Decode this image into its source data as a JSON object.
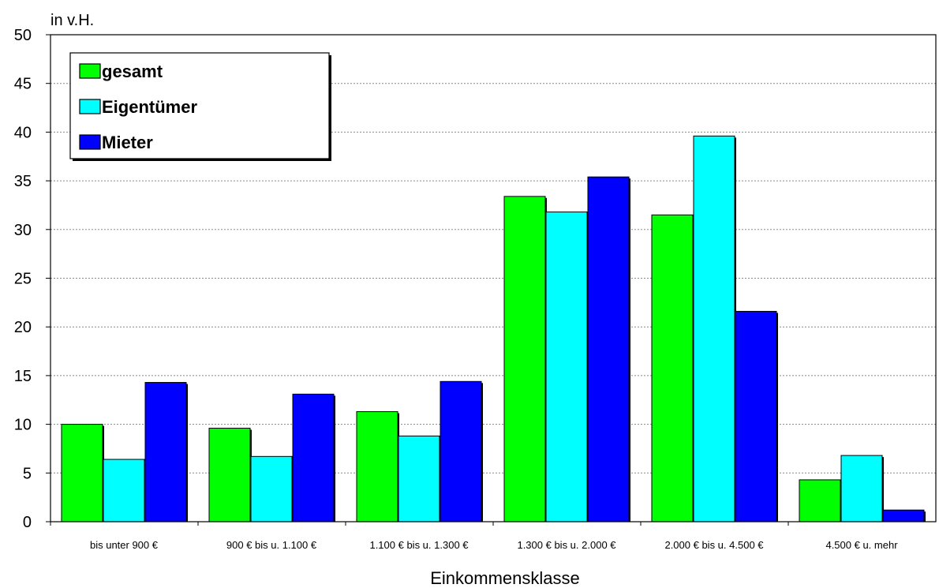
{
  "chart_data": {
    "type": "bar",
    "unit_label": "in v.H.",
    "xlabel": "Einkommensklasse",
    "ylim": [
      0,
      50
    ],
    "yticks": [
      0,
      5,
      10,
      15,
      20,
      25,
      30,
      35,
      40,
      45,
      50
    ],
    "grid": true,
    "legend_position": "top-left",
    "categories": [
      "bis unter 900 €",
      "900 € bis u. 1.100 €",
      "1.100 € bis u. 1.300 €",
      "1.300 € bis u. 2.000 €",
      "2.000 € bis u. 4.500 €",
      "4.500 € u. mehr"
    ],
    "series": [
      {
        "name": "gesamt",
        "color": "#00ff00",
        "values": [
          10.0,
          9.6,
          11.3,
          33.4,
          31.5,
          4.3
        ]
      },
      {
        "name": "Eigentümer",
        "color": "#00ffff",
        "values": [
          6.4,
          6.7,
          8.8,
          31.8,
          39.6,
          6.8
        ]
      },
      {
        "name": "Mieter",
        "color": "#0000ff",
        "values": [
          14.3,
          13.1,
          14.4,
          35.4,
          21.6,
          1.2
        ]
      }
    ]
  }
}
